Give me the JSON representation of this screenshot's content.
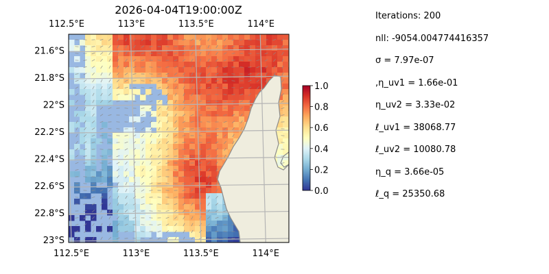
{
  "chart_data": {
    "type": "heatmap",
    "title": "2026-04-04T19:00:00Z",
    "x_ticks": [
      "112.5°E",
      "113°E",
      "113.5°E",
      "114°E"
    ],
    "x_tick_values": [
      112.5,
      113.0,
      113.5,
      114.0
    ],
    "y_ticks": [
      "21.6°S",
      "21.8°S",
      "22°S",
      "22.2°S",
      "22.4°S",
      "22.6°S",
      "22.8°S",
      "23°S"
    ],
    "y_tick_values": [
      -21.6,
      -21.8,
      -22.0,
      -22.2,
      -22.4,
      -22.6,
      -22.8,
      -23.0
    ],
    "xlim": [
      112.5,
      114.2
    ],
    "ylim": [
      -23.02,
      -21.48
    ],
    "grid": true,
    "colormap": "RdYlBu_r",
    "colorbar": {
      "range": [
        0.0,
        1.0
      ],
      "ticks": [
        "1.0",
        "0.8",
        "0.6",
        "0.4",
        "0.2",
        "0.0"
      ],
      "tick_values": [
        1.0,
        0.8,
        0.6,
        0.4,
        0.2,
        0.0
      ]
    },
    "colors": {
      "missing": "#99b8e2",
      "land": "#efedde",
      "coast": "#8a8a8a",
      "grid": "#b4b4b4",
      "vector": "#8a8a8a"
    }
  },
  "stats": [
    "Iterations: 200",
    "nll: -9054.004774416357",
    "σ = 7.97e-07",
    ",η_uv1 = 1.66e-01",
    "η_uv2 = 3.33e-02",
    "ℓ_uv1 = 38068.77",
    "ℓ_uv2 = 10080.78",
    "η_q = 3.66e-05",
    "ℓ_q = 25350.68"
  ]
}
